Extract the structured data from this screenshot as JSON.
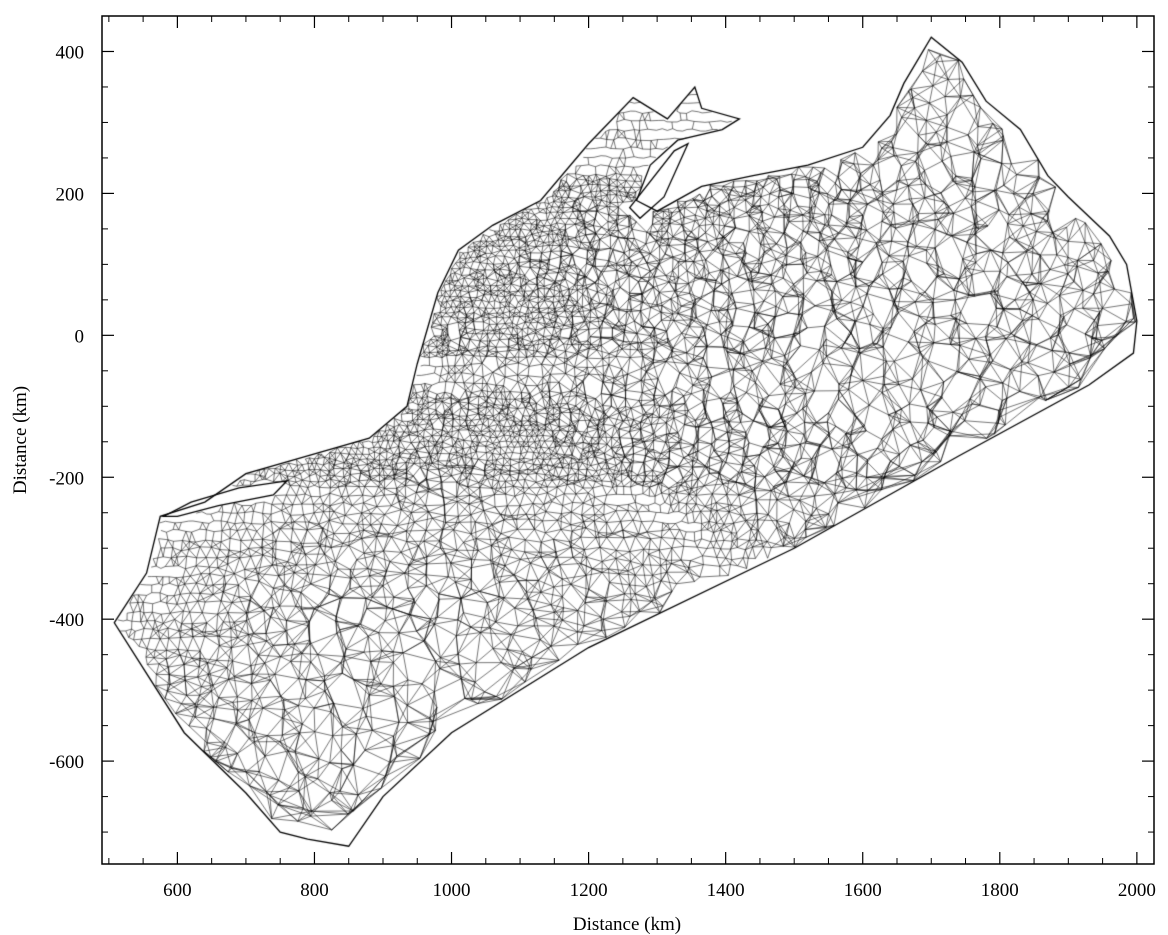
{
  "chart_data": {
    "type": "mesh",
    "xlabel": "Distance (km)",
    "ylabel": "Distance (km)",
    "xlim": [
      490,
      2025
    ],
    "ylim": [
      -745,
      450
    ],
    "x_ticks": [
      600,
      800,
      1000,
      1200,
      1400,
      1600,
      1800,
      2000
    ],
    "y_ticks": [
      400,
      200,
      0,
      -200,
      -400,
      -600
    ],
    "x_tick_labels": [
      "600",
      "800",
      "1000",
      "1200",
      "1400",
      "1600",
      "1800",
      "2000"
    ],
    "y_tick_labels": [
      "400",
      "200",
      "0",
      "-200",
      "-400",
      "-600"
    ],
    "grid": false,
    "mesh_outline": [
      [
        508,
        -405
      ],
      [
        555,
        -335
      ],
      [
        575,
        -255
      ],
      [
        640,
        -235
      ],
      [
        700,
        -195
      ],
      [
        790,
        -170
      ],
      [
        880,
        -145
      ],
      [
        935,
        -100
      ],
      [
        950,
        -40
      ],
      [
        980,
        60
      ],
      [
        1010,
        120
      ],
      [
        1060,
        155
      ],
      [
        1130,
        190
      ],
      [
        1200,
        270
      ],
      [
        1265,
        335
      ],
      [
        1315,
        305
      ],
      [
        1355,
        350
      ],
      [
        1365,
        320
      ],
      [
        1420,
        305
      ],
      [
        1395,
        290
      ],
      [
        1330,
        275
      ],
      [
        1290,
        240
      ],
      [
        1270,
        190
      ],
      [
        1300,
        175
      ],
      [
        1365,
        210
      ],
      [
        1440,
        225
      ],
      [
        1520,
        240
      ],
      [
        1600,
        265
      ],
      [
        1640,
        310
      ],
      [
        1660,
        355
      ],
      [
        1700,
        420
      ],
      [
        1745,
        385
      ],
      [
        1780,
        330
      ],
      [
        1830,
        290
      ],
      [
        1870,
        225
      ],
      [
        1900,
        195
      ],
      [
        1960,
        140
      ],
      [
        1985,
        100
      ],
      [
        2000,
        20
      ],
      [
        1995,
        -25
      ],
      [
        1930,
        -70
      ],
      [
        1740,
        -170
      ],
      [
        1500,
        -300
      ],
      [
        1200,
        -440
      ],
      [
        1000,
        -560
      ],
      [
        900,
        -650
      ],
      [
        850,
        -720
      ],
      [
        790,
        -710
      ],
      [
        750,
        -700
      ],
      [
        700,
        -645
      ],
      [
        610,
        -560
      ],
      [
        508,
        -405
      ]
    ],
    "hole_outline": [
      [
        1260,
        180
      ],
      [
        1325,
        260
      ],
      [
        1345,
        270
      ],
      [
        1310,
        195
      ],
      [
        1275,
        165
      ],
      [
        1260,
        180
      ]
    ],
    "island_outline": [
      [
        580,
        -255
      ],
      [
        620,
        -235
      ],
      [
        690,
        -215
      ],
      [
        760,
        -205
      ],
      [
        740,
        -225
      ],
      [
        660,
        -240
      ],
      [
        600,
        -255
      ],
      [
        580,
        -255
      ]
    ],
    "refinement_zones": [
      {
        "type": "coastal",
        "cx": 1100,
        "cy": -150,
        "rx": 350,
        "ry": 160,
        "rot": -20,
        "density": 0.9
      },
      {
        "type": "shelf-break",
        "cx": 1300,
        "cy": -240,
        "rx": 600,
        "ry": 70,
        "rot": -30,
        "density": 0.95
      },
      {
        "type": "inner-shelf",
        "cx": 1080,
        "cy": 40,
        "rx": 250,
        "ry": 160,
        "rot": -20,
        "density": 0.8
      },
      {
        "type": "gulf",
        "cx": 1230,
        "cy": 260,
        "rx": 140,
        "ry": 90,
        "rot": 30,
        "density": 0.85
      }
    ]
  }
}
